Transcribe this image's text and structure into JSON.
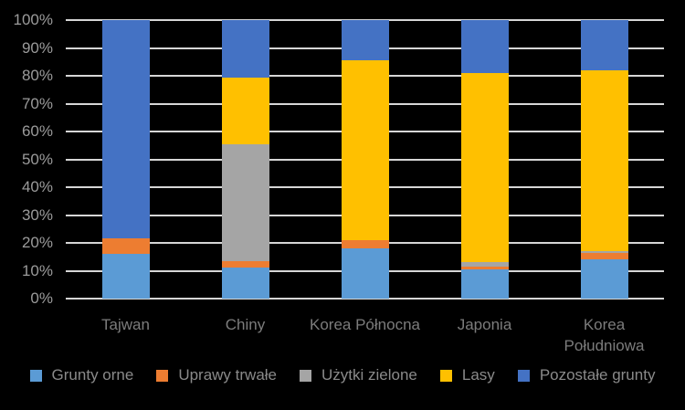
{
  "colors": {
    "background": "#000000",
    "gridline": "#D6D6D6",
    "y_tick_text": "#9B9B9B",
    "category_text": "#7C7C7C",
    "legend_text": "#8A8A8A"
  },
  "chart_data": {
    "type": "bar",
    "subtype": "stacked-100-percent",
    "title": "",
    "xlabel": "",
    "ylabel": "",
    "ylim": [
      0,
      100
    ],
    "grid": true,
    "legend_position": "bottom",
    "y_tick_labels": [
      "100%",
      "90%",
      "80%",
      "70%",
      "60%",
      "50%",
      "40%",
      "30%",
      "20%",
      "10%",
      "0%"
    ],
    "categories": [
      "Tajwan",
      "Chiny",
      "Korea Północna",
      "Japonia",
      "Korea Południowa"
    ],
    "category_labels": [
      [
        "Tajwan"
      ],
      [
        "Chiny"
      ],
      [
        "Korea Północna"
      ],
      [
        "Japonia"
      ],
      [
        "Korea",
        "Południowa"
      ]
    ],
    "series": [
      {
        "name": "Grunty orne",
        "color": "#5B9BD5",
        "values": [
          16,
          11,
          18,
          10.5,
          14
        ]
      },
      {
        "name": "Uprawy trwałe",
        "color": "#ED7D31",
        "values": [
          5.5,
          2.5,
          3,
          1,
          2.5
        ]
      },
      {
        "name": "Użytki zielone",
        "color": "#A5A5A5",
        "values": [
          0,
          42,
          0,
          1.5,
          0.5
        ]
      },
      {
        "name": "Lasy",
        "color": "#FFC000",
        "values": [
          0,
          24,
          64.5,
          68,
          65
        ]
      },
      {
        "name": "Pozostałe grunty",
        "color": "#4472C4",
        "values": [
          78.5,
          20.5,
          14.5,
          19,
          18
        ]
      }
    ]
  }
}
